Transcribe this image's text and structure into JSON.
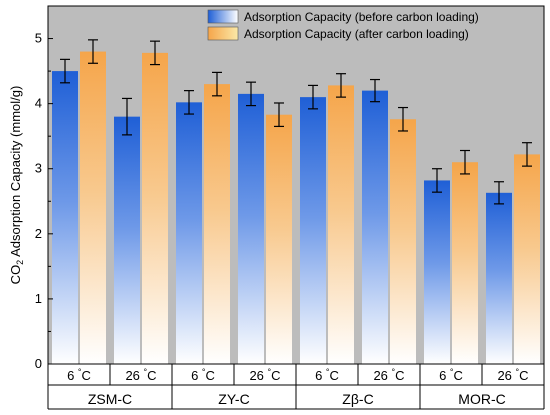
{
  "chart_data": {
    "type": "bar",
    "ylabel": "CO2 Adsorption Capacity (mmol/g)",
    "ylim": [
      0,
      5.5
    ],
    "yticks": [
      0,
      1,
      2,
      3,
      4,
      5
    ],
    "grid": false,
    "legend_position": "top-right",
    "groups": [
      "ZSM-C",
      "ZY-C",
      "Zβ-C",
      "MOR-C"
    ],
    "temperatures": [
      "6 °C",
      "26 °C"
    ],
    "categories": [
      "ZSM-C 6 °C",
      "ZSM-C 26 °C",
      "ZY-C 6 °C",
      "ZY-C 26 °C",
      "Zβ-C 6 °C",
      "Zβ-C 26 °C",
      "MOR-C 6 °C",
      "MOR-C 26 °C"
    ],
    "series": [
      {
        "name": "Adsorption Capacity (before carbon loading)",
        "color": "#1f5fd6",
        "values": [
          4.5,
          3.8,
          4.02,
          4.15,
          4.1,
          4.2,
          2.82,
          2.63
        ],
        "errors": [
          0.18,
          0.28,
          0.18,
          0.18,
          0.18,
          0.17,
          0.18,
          0.17
        ]
      },
      {
        "name": "Adsorption Capacity (after carbon loading)",
        "color": "#f5a54a",
        "values": [
          4.8,
          4.78,
          4.3,
          3.83,
          4.28,
          3.76,
          3.1,
          3.22
        ],
        "errors": [
          0.18,
          0.18,
          0.18,
          0.18,
          0.18,
          0.18,
          0.18,
          0.18
        ]
      }
    ]
  }
}
